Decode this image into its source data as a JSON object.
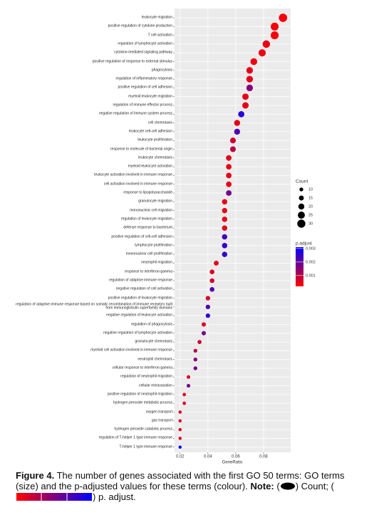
{
  "chart_data": {
    "type": "dot",
    "x_label": "GeneRatio",
    "categories": [
      "leukocyte migration",
      "positive regulation of cytokine production",
      "T cell activation",
      "regulation of lymphocyte activation",
      "cytokine-mediated signaling pathway",
      "positive regulation of response to external stimulus",
      "phagocytosis",
      "regulation of inflammatory response",
      "positive regulation of cell adhesion",
      "myeloid leukocyte migration",
      "regulation of immune effector process",
      "negative regulation of immune system process",
      "cell chemotaxis",
      "leukocyte cell-cell adhesion",
      "leukocyte proliferation",
      "response to molecule of bacterial origin",
      "leukocyte chemotaxis",
      "myeloid leukocyte activation",
      "leukocyte activation involved in immune response",
      "cell activation involved in immune response",
      "response to lipopolysaccharide",
      "granulocyte migration",
      "mononuclear cell migration",
      "regulation of leukocyte migration",
      "defense response to bacterium",
      "positive regulation of cell-cell adhesion",
      "lymphocyte proliferation",
      "mononuclear cell proliferation",
      "neutrophil migration",
      "response to interferon-gamma",
      "regulation of adaptive immune response",
      "negative regulation of cell activation",
      "positive regulation of leukocyte migration",
      "regulation of adaptive immune response based on somatic recombination of immune receptors built from immunoglobulin superfamily domains",
      "negative regulation of leukocyte activation",
      "regulation of phagocytosis",
      "negative regulation of lymphocyte activation",
      "granulocyte chemotaxis",
      "myeloid cell activation involved in immune response",
      "neutrophil chemotaxis",
      "cellular response to interferon-gamma",
      "regulation of neutrophil migration",
      "cellular extravasation",
      "positive regulation of neutrophil migration",
      "hydrogen peroxide metabolic process",
      "oxygen transport",
      "gas transport",
      "hydrogen peroxide catabolic process",
      "regulation of T-helper 1 type immune response",
      "T-helper 1 type immune response"
    ],
    "values": [
      0.094,
      0.088,
      0.088,
      0.082,
      0.079,
      0.073,
      0.07,
      0.07,
      0.07,
      0.067,
      0.067,
      0.064,
      0.061,
      0.061,
      0.058,
      0.058,
      0.055,
      0.055,
      0.055,
      0.055,
      0.055,
      0.052,
      0.052,
      0.052,
      0.052,
      0.052,
      0.052,
      0.052,
      0.046,
      0.043,
      0.043,
      0.043,
      0.04,
      0.04,
      0.04,
      0.037,
      0.037,
      0.034,
      0.031,
      0.031,
      0.031,
      0.026,
      0.026,
      0.023,
      0.023,
      0.02,
      0.02,
      0.02,
      0.02,
      0.02
    ],
    "counts": [
      31,
      29,
      29,
      27,
      26,
      24,
      23,
      23,
      23,
      22,
      22,
      21,
      20,
      20,
      19,
      19,
      18,
      18,
      18,
      18,
      18,
      17,
      17,
      17,
      17,
      17,
      17,
      17,
      15,
      14,
      14,
      14,
      13,
      13,
      13,
      12,
      12,
      11,
      10,
      10,
      10,
      9,
      9,
      8,
      8,
      7,
      7,
      7,
      7,
      7
    ],
    "p_adjust": [
      0.0003,
      0.0003,
      0.0003,
      0.0004,
      0.0004,
      0.0004,
      0.0005,
      0.0005,
      0.0016,
      0.0005,
      0.0005,
      0.0027,
      0.0005,
      0.0022,
      0.0008,
      0.001,
      0.0005,
      0.0005,
      0.0005,
      0.0005,
      0.0018,
      0.0005,
      0.0005,
      0.0005,
      0.0006,
      0.0024,
      0.0025,
      0.0025,
      0.0005,
      0.0006,
      0.0007,
      0.0022,
      0.0006,
      0.0022,
      0.0025,
      0.0006,
      0.0018,
      0.0008,
      0.001,
      0.0016,
      0.0018,
      0.0006,
      0.0018,
      0.0006,
      0.0006,
      0.0006,
      0.0006,
      0.0006,
      0.0006,
      0.0031
    ],
    "xlim": [
      0.016,
      0.0995
    ],
    "xticks": [
      0.02,
      0.04,
      0.06,
      0.08
    ],
    "grid": true,
    "size_legend": {
      "title": "Count",
      "ticks": [
        10,
        15,
        20,
        25,
        30
      ]
    },
    "color_legend": {
      "title": "p.adjust",
      "lim": [
        0.0002,
        0.0031
      ],
      "ticks": [
        0.001,
        0.002,
        0.003
      ],
      "low_color": "#ff0000",
      "high_color": "#0000ff"
    }
  },
  "caption": {
    "label": "Figure 4.",
    "text": "The number of genes associated with the first GO 50 terms: GO terms (size) and the p-adjusted values for these terms (colour).",
    "note_label": "Note:",
    "note_parts": [
      "(",
      ") Count; (",
      ") p. adjust."
    ]
  }
}
